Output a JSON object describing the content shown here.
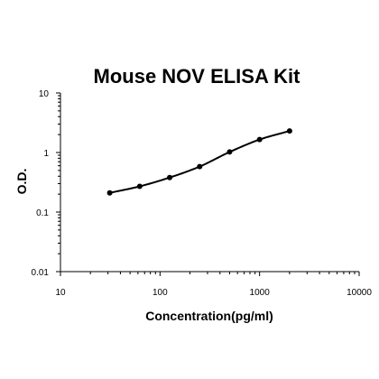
{
  "chart_data": {
    "type": "scatter",
    "title": "Mouse NOV ELISA Kit",
    "xlabel": "Concentration(pg/ml)",
    "ylabel": "O.D.",
    "x_scale": "log",
    "y_scale": "log",
    "xlim": [
      10,
      10000
    ],
    "ylim": [
      0.01,
      10
    ],
    "x_ticks": [
      10,
      100,
      1000,
      10000
    ],
    "x_tick_labels": [
      "10",
      "100",
      "1000",
      "10000"
    ],
    "y_ticks": [
      0.01,
      0.1,
      1,
      10
    ],
    "y_tick_labels": [
      "0.01",
      "0.1",
      "1",
      "10"
    ],
    "grid": false,
    "legend": "none",
    "series": [
      {
        "x": [
          31.25,
          62.5,
          125,
          250,
          500,
          1000,
          2000
        ],
        "y": [
          0.21,
          0.27,
          0.38,
          0.58,
          1.02,
          1.65,
          2.3
        ],
        "fit_line": true
      }
    ]
  }
}
